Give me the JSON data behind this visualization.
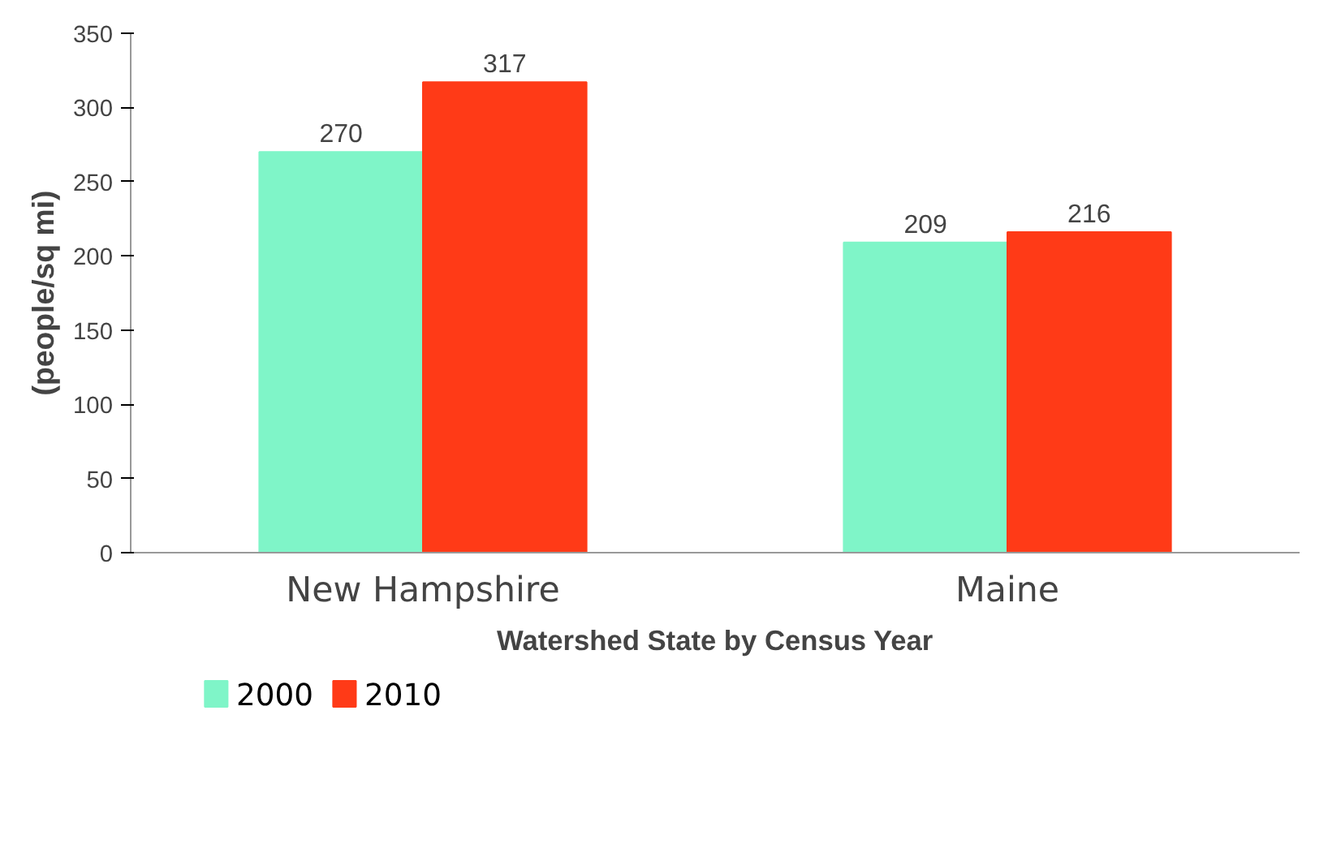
{
  "chart_data": {
    "type": "bar",
    "xlabel": "Watershed State by Census Year",
    "ylabel": "(people/sq mi)",
    "categories": [
      "New Hampshire",
      "Maine"
    ],
    "series": [
      {
        "name": "2000",
        "color": "#7ff5c8",
        "values": [
          270,
          209
        ]
      },
      {
        "name": "2010",
        "color": "#ff3a17",
        "values": [
          317,
          216
        ]
      }
    ],
    "ylim": [
      0,
      350
    ],
    "yticks": [
      0,
      50,
      100,
      150,
      200,
      250,
      300,
      350
    ],
    "data_labels": true,
    "grid": false,
    "legend": "bottom left"
  }
}
